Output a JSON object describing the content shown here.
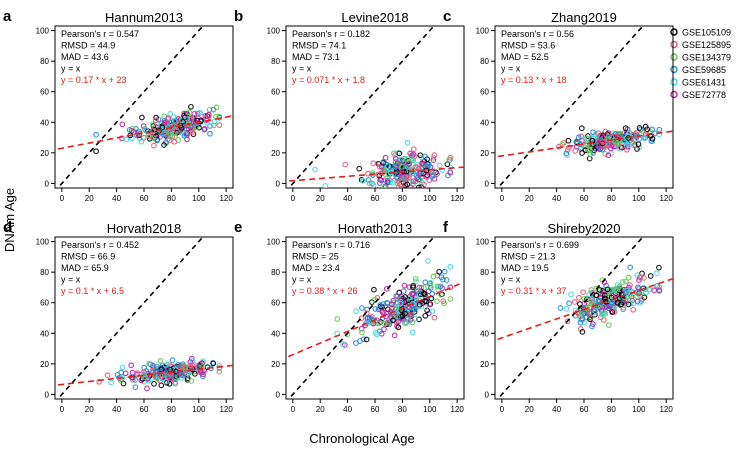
{
  "figure": {
    "shared_xlabel": "Chronological Age",
    "shared_ylabel": "DNAm Age",
    "legend": {
      "position": "top-right",
      "entries": [
        {
          "label": "GSE105109",
          "color": "#000000"
        },
        {
          "label": "GSE125895",
          "color": "#e0577a"
        },
        {
          "label": "GSE134379",
          "color": "#63c750"
        },
        {
          "label": "GSE59685",
          "color": "#1f8ad8"
        },
        {
          "label": "GSE61431",
          "color": "#3fd8e0"
        },
        {
          "label": "GSE72778",
          "color": "#c11ab0"
        }
      ]
    },
    "colors": {
      "identity_line": "#000000",
      "fit_line": "#e0201b",
      "fit_text": "#e0201b"
    }
  },
  "chart_data": [
    {
      "type": "scatter",
      "panel": "a",
      "title": "Hannum2013",
      "xlim": [
        -5,
        125
      ],
      "ylim": [
        -3,
        103
      ],
      "xticks": [
        0,
        20,
        40,
        60,
        80,
        100,
        120
      ],
      "yticks": [
        0,
        20,
        40,
        60,
        80,
        100
      ],
      "stats": [
        "Pearson's r = 0.547",
        "RMSD = 44.9",
        "MAD = 43.6",
        "y = x"
      ],
      "fit_label": "y = 0.17 * x + 23",
      "fit": {
        "slope": 0.17,
        "intercept": 23
      },
      "cloud": {
        "x_center": 80,
        "x_spread": 14,
        "noise": 4,
        "x_min": 25,
        "x_max": 115
      }
    },
    {
      "type": "scatter",
      "panel": "b",
      "title": "Levine2018",
      "xlim": [
        -5,
        125
      ],
      "ylim": [
        -3,
        103
      ],
      "xticks": [
        0,
        20,
        40,
        60,
        80,
        100,
        120
      ],
      "yticks": [
        0,
        20,
        40,
        60,
        80,
        100
      ],
      "stats": [
        "Pearson's r = 0.182",
        "RMSD = 74.1",
        "MAD = 73.1",
        "y = x"
      ],
      "fit_label": "y = 0.071 * x + 1.8",
      "fit": {
        "slope": 0.071,
        "intercept": 1.8
      },
      "cloud": {
        "x_center": 80,
        "x_spread": 14,
        "noise": 6,
        "x_min": 15,
        "x_max": 115
      }
    },
    {
      "type": "scatter",
      "panel": "c",
      "title": "Zhang2019",
      "xlim": [
        -5,
        125
      ],
      "ylim": [
        -3,
        103
      ],
      "xticks": [
        0,
        20,
        40,
        60,
        80,
        100,
        120
      ],
      "yticks": [
        0,
        20,
        40,
        60,
        80,
        100
      ],
      "stats": [
        "Pearson's r = 0.56",
        "RMSD = 53.6",
        "MAD = 52.5",
        "y = x"
      ],
      "fit_label": "y = 0.13 * x + 18",
      "fit": {
        "slope": 0.13,
        "intercept": 18
      },
      "cloud": {
        "x_center": 80,
        "x_spread": 14,
        "noise": 3,
        "x_min": 20,
        "x_max": 115
      }
    },
    {
      "type": "scatter",
      "panel": "d",
      "title": "Horvath2018",
      "xlim": [
        -5,
        125
      ],
      "ylim": [
        -3,
        103
      ],
      "xticks": [
        0,
        20,
        40,
        60,
        80,
        100,
        120
      ],
      "yticks": [
        0,
        20,
        40,
        60,
        80,
        100
      ],
      "stats": [
        "Pearson's r = 0.452",
        "RMSD = 66.9",
        "MAD = 65.9",
        "y = x"
      ],
      "fit_label": "y = 0.1 * x + 6.5",
      "fit": {
        "slope": 0.1,
        "intercept": 6.5
      },
      "cloud": {
        "x_center": 80,
        "x_spread": 14,
        "noise": 3,
        "x_min": 15,
        "x_max": 115
      }
    },
    {
      "type": "scatter",
      "panel": "e",
      "title": "Horvath2013",
      "xlim": [
        -5,
        125
      ],
      "ylim": [
        -3,
        103
      ],
      "xticks": [
        0,
        20,
        40,
        60,
        80,
        100,
        120
      ],
      "yticks": [
        0,
        20,
        40,
        60,
        80,
        100
      ],
      "stats": [
        "Pearson's r = 0.716",
        "RMSD = 25",
        "MAD = 23.4",
        "y = x"
      ],
      "fit_label": "y = 0.38 * x + 26",
      "fit": {
        "slope": 0.38,
        "intercept": 26
      },
      "cloud": {
        "x_center": 80,
        "x_spread": 14,
        "noise": 7,
        "x_min": 15,
        "x_max": 115
      }
    },
    {
      "type": "scatter",
      "panel": "f",
      "title": "Shireby2020",
      "xlim": [
        -5,
        125
      ],
      "ylim": [
        -3,
        103
      ],
      "xticks": [
        0,
        20,
        40,
        60,
        80,
        100,
        120
      ],
      "yticks": [
        0,
        20,
        40,
        60,
        80,
        100
      ],
      "stats": [
        "Pearson's r = 0.699",
        "RMSD = 21.3",
        "MAD = 19.5",
        "y = x"
      ],
      "fit_label": "y = 0.31 * x + 37",
      "fit": {
        "slope": 0.31,
        "intercept": 37
      },
      "cloud": {
        "x_center": 80,
        "x_spread": 14,
        "noise": 6,
        "x_min": 15,
        "x_max": 115
      }
    }
  ]
}
